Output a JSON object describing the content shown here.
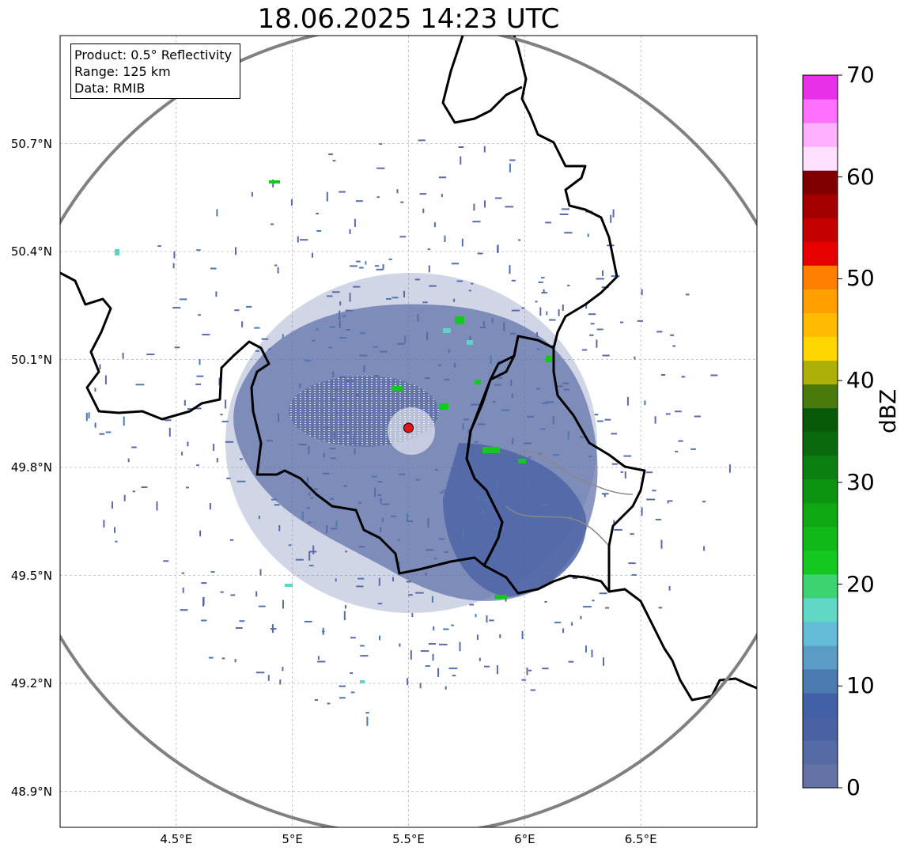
{
  "title": "18.06.2025 14:23 UTC",
  "info": {
    "product": "Product: 0.5° Reflectivity",
    "range": "Range: 125 km",
    "data": "Data: RMIB"
  },
  "axes": {
    "lat_labels": [
      "50.7°N",
      "50.4°N",
      "50.1°N",
      "49.8°N",
      "49.5°N",
      "49.2°N",
      "48.9°N"
    ],
    "lat_values": [
      50.7,
      50.4,
      50.1,
      49.8,
      49.5,
      49.2,
      48.9
    ],
    "lon_labels": [
      "4.5°E",
      "5°E",
      "5.5°E",
      "6°E",
      "6.5°E"
    ],
    "lon_values": [
      4.5,
      5.0,
      5.5,
      6.0,
      6.5
    ],
    "lon_range": [
      4.0,
      7.0
    ],
    "lat_range": [
      48.8,
      51.0
    ],
    "grid": true
  },
  "radar": {
    "site_lon": 5.5,
    "site_lat": 49.91,
    "site_color": "#e8111c",
    "range_ring_color": "#808080"
  },
  "colorbar": {
    "label": "dBZ",
    "ticks": [
      "70",
      "60",
      "50",
      "40",
      "30",
      "20",
      "10",
      "0"
    ],
    "tick_values": [
      70,
      60,
      50,
      40,
      30,
      20,
      10,
      0
    ],
    "range": [
      0,
      70
    ],
    "colors": [
      "#6472a6",
      "#566aa6",
      "#4a62a4",
      "#4260a6",
      "#4a7ab0",
      "#5a9cc4",
      "#64bcd8",
      "#60d6c4",
      "#3cd470",
      "#14c820",
      "#10b818",
      "#0ea812",
      "#0c9410",
      "#0a8010",
      "#086a0c",
      "#085a08",
      "#4a7a0a",
      "#aeb00a",
      "#ffd700",
      "#ffbb00",
      "#ff9f00",
      "#ff7f00",
      "#e60000",
      "#c40000",
      "#a40000",
      "#800000",
      "#ffe0ff",
      "#ffb0ff",
      "#ff70ff",
      "#e830e8"
    ]
  },
  "borders": {
    "color": "#000000",
    "secondary_color": "#888888"
  }
}
